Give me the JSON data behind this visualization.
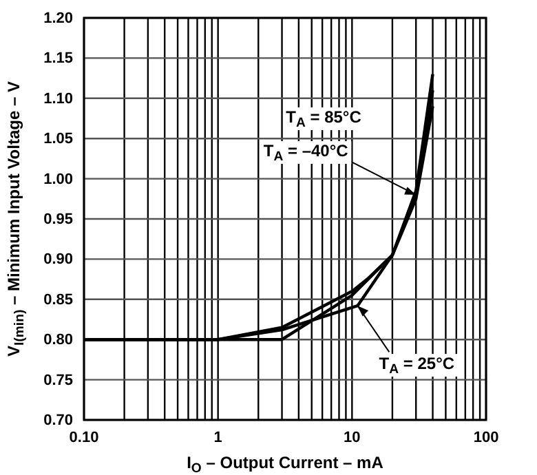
{
  "chart_data": {
    "type": "line",
    "xlabel": "I$_{O}$ – Output Current – mA",
    "ylabel": "V$_{I(min)}$ – Minimum Input Voltage – V",
    "log": "x",
    "grid": true,
    "line_style": "solid",
    "marker": "none",
    "xlim": [
      0.1,
      100
    ],
    "ylim": [
      0.7,
      1.2
    ],
    "xticks": [
      {
        "value": 0.1,
        "label": "0.10"
      },
      {
        "value": 0.2,
        "label": null
      },
      {
        "value": 0.3,
        "label": null
      },
      {
        "value": 0.4,
        "label": null
      },
      {
        "value": 0.5,
        "label": null
      },
      {
        "value": 0.6,
        "label": null
      },
      {
        "value": 0.7,
        "label": null
      },
      {
        "value": 0.8,
        "label": null
      },
      {
        "value": 0.9,
        "label": null
      },
      1,
      {
        "value": 2,
        "label": null
      },
      {
        "value": 3,
        "label": null
      },
      {
        "value": 4,
        "label": null
      },
      {
        "value": 5,
        "label": null
      },
      {
        "value": 6,
        "label": null
      },
      {
        "value": 7,
        "label": null
      },
      {
        "value": 8,
        "label": null
      },
      {
        "value": 9,
        "label": null
      },
      10,
      {
        "value": 20,
        "label": null
      },
      {
        "value": 30,
        "label": null
      },
      {
        "value": 40,
        "label": null
      },
      {
        "value": 50,
        "label": null
      },
      {
        "value": 60,
        "label": null
      },
      {
        "value": 70,
        "label": null
      },
      {
        "value": 80,
        "label": null
      },
      {
        "value": 90,
        "label": null
      },
      100
    ],
    "yticks": [
      {
        "value": 0.7,
        "label": "0.70"
      },
      {
        "value": 0.75,
        "label": "0.75"
      },
      {
        "value": 0.8,
        "label": "0.80"
      },
      {
        "value": 0.85,
        "label": "0.85"
      },
      {
        "value": 0.9,
        "label": "0.90"
      },
      {
        "value": 0.95,
        "label": "0.95"
      },
      {
        "value": 1.0,
        "label": "1.00"
      },
      {
        "value": 1.05,
        "label": "1.05"
      },
      {
        "value": 1.1,
        "label": "1.10"
      },
      {
        "value": 1.15,
        "label": "1.15"
      },
      {
        "value": 1.2,
        "label": "1.20"
      }
    ],
    "series": [
      {
        "color": "#000000",
        "x": [
          0.1,
          1,
          3,
          10,
          13,
          20,
          30,
          40
        ],
        "values": [
          0.8,
          0.8,
          0.815,
          0.86,
          0.875,
          0.905,
          0.985,
          1.13
        ]
      },
      {
        "color": "#000000",
        "x": [
          0.1,
          3,
          10,
          20,
          30,
          40
        ],
        "values": [
          0.8,
          0.8,
          0.855,
          0.905,
          0.975,
          1.09
        ]
      },
      {
        "color": "#000000",
        "x": [
          0.1,
          1,
          3,
          11,
          20,
          30,
          40
        ],
        "values": [
          0.8,
          0.8,
          0.812,
          0.842,
          0.905,
          0.98,
          1.11
        ]
      }
    ],
    "annotations": [
      "T$_{A}$ = 85°C",
      {
        "text": "T$_{A}$ = –40°C",
        "x": 30,
        "y": 0.98
      },
      {
        "text": "T$_{A}$ = 25°C",
        "x": 11,
        "y": 0.842
      }
    ]
  }
}
